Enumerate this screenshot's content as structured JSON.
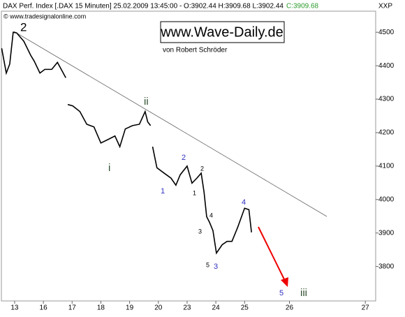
{
  "chart_data": {
    "type": "line",
    "title": "DAX Perf. Index [.DAX  15 Minuten] 25.02.2009 13:45:00 - O:3902.44 H:3909.68 L:3902.44",
    "title_close": "C:3909.68",
    "source": "© www.tradesignalonline.com",
    "axis_code": "XXP",
    "brand": "www.Wave-Daily.de",
    "author": "von Robert Schröder",
    "series": [
      {
        "name": "DAX",
        "color": "#000000",
        "x": [
          -0.45,
          -0.29,
          -0.17,
          -0.05,
          0.07,
          0.32,
          0.56,
          0.68,
          0.88,
          1.05,
          1.29,
          1.49,
          1.78,
          null,
          1.85,
          2.02,
          2.27,
          2.51,
          2.76,
          3.0,
          3.24,
          3.49,
          3.66,
          3.85,
          4.1,
          4.34,
          4.54,
          4.63,
          4.73,
          null,
          4.8,
          4.95,
          5.2,
          5.44,
          5.61,
          5.76,
          6.0,
          6.17,
          6.34,
          6.49,
          6.59,
          6.68,
          6.78,
          6.9,
          7.02,
          7.22,
          7.39,
          7.56,
          7.76,
          8.0,
          8.15,
          8.24
        ],
        "values": [
          4452,
          4378,
          4405,
          4500,
          4498,
          4473,
          4431,
          4414,
          4378,
          4389,
          4389,
          4410,
          4364,
          null,
          4284,
          4280,
          4263,
          4225,
          4217,
          4169,
          4179,
          4190,
          4158,
          4211,
          4221,
          4225,
          4263,
          4232,
          4221,
          null,
          4158,
          4095,
          4079,
          4064,
          4043,
          4074,
          4100,
          4049,
          4064,
          4079,
          4022,
          3949,
          3932,
          3907,
          3840,
          3865,
          3875,
          3875,
          3917,
          3974,
          3970,
          3902
        ]
      }
    ],
    "xlim": [
      -0.46,
      12.56
    ],
    "xticks": [
      {
        "value": 0,
        "label": "13"
      },
      {
        "value": 1,
        "label": "16"
      },
      {
        "value": 2,
        "label": "17"
      },
      {
        "value": 3,
        "label": "18"
      },
      {
        "value": 4,
        "label": "19"
      },
      {
        "value": 5,
        "label": "20"
      },
      {
        "value": 6,
        "label": "23"
      },
      {
        "value": 7,
        "label": "24"
      },
      {
        "value": 8,
        "label": "25"
      },
      {
        "value": 9.56,
        "label": "26"
      },
      {
        "value": 12.2,
        "label": "27"
      }
    ],
    "ylim": [
      3697,
      4563
    ],
    "yticks": [
      3800,
      3900,
      4000,
      4100,
      4200,
      4300,
      4400,
      4500
    ],
    "annotations": [
      "2",
      "ii",
      "i",
      "2",
      "1",
      "1",
      "2",
      "4",
      "3",
      "5",
      "3",
      "4",
      "5",
      "iii"
    ]
  }
}
